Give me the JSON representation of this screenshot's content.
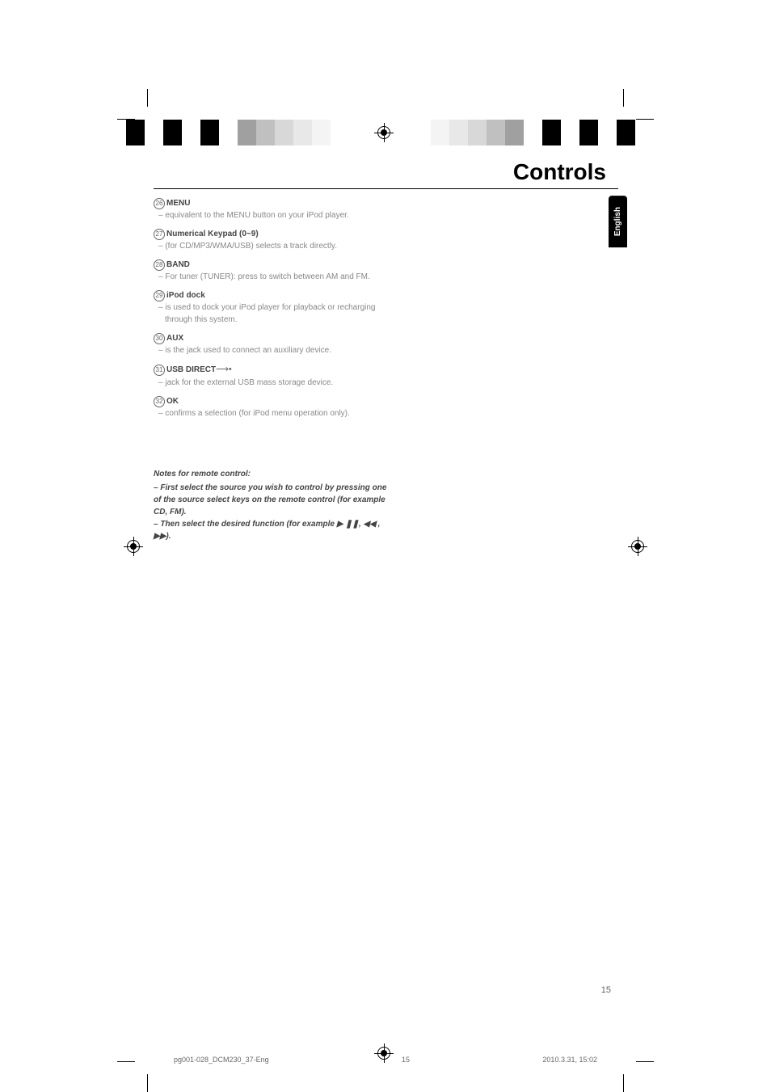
{
  "page": {
    "title": "Controls",
    "language_tab": "English",
    "page_number": "15"
  },
  "color_bar": {
    "colors_left": [
      "#000000",
      "#ffffff",
      "#000000",
      "#ffffff",
      "#000000",
      "#ffffff",
      "#a0a0a0",
      "#c0c0c0",
      "#d8d8d8",
      "#e8e8e8",
      "#f4f4f4",
      "#ffffff"
    ],
    "colors_right": [
      "#ffffff",
      "#f4f4f4",
      "#e8e8e8",
      "#d8d8d8",
      "#c0c0c0",
      "#a0a0a0",
      "#ffffff",
      "#000000",
      "#ffffff",
      "#000000",
      "#ffffff",
      "#000000"
    ]
  },
  "controls": [
    {
      "num": "26",
      "label": "MENU",
      "desc": "equivalent to the MENU button on your iPod player."
    },
    {
      "num": "27",
      "label": "Numerical Keypad (0~9)",
      "desc": "(for CD/MP3/WMA/USB) selects a track directly."
    },
    {
      "num": "28",
      "label": "BAND",
      "desc": "For tuner (TUNER): press to switch between AM and FM."
    },
    {
      "num": "29",
      "label": "iPod dock",
      "desc": "is used to dock your iPod player for playback or recharging through this system."
    },
    {
      "num": "30",
      "label": "AUX",
      "desc": "is the jack used to connect an auxiliary device."
    },
    {
      "num": "31",
      "label": "USB DIRECT",
      "has_icon": true,
      "desc": "jack for the external USB mass storage device."
    },
    {
      "num": "32",
      "label": "OK",
      "desc": "confirms a selection (for iPod menu operation only)."
    }
  ],
  "notes": {
    "title": "Notes for remote control:",
    "items": [
      "First select the source you wish to control by pressing one of the source select keys on the remote control (for example CD, FM).",
      "Then select the desired function (for example ▶ ❚❚, ◀◀ , ▶▶)."
    ]
  },
  "footer": {
    "filename": "pg001-028_DCM230_37-Eng",
    "center_page": "15",
    "timestamp": "2010.3.31, 15:02"
  }
}
